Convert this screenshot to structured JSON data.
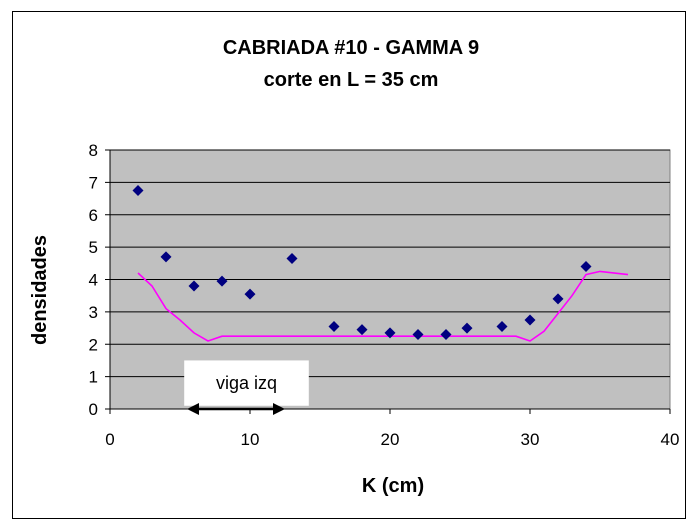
{
  "chart_data": {
    "type": "scatter",
    "title": "CABRIADA #10 - GAMMA 9",
    "subtitle": "corte en L = 35 cm",
    "xlabel": "K (cm)",
    "ylabel": "densidades",
    "xlim": [
      0,
      40
    ],
    "ylim": [
      0,
      8
    ],
    "xticks": [
      0,
      10,
      20,
      30,
      40
    ],
    "yticks": [
      0,
      1,
      2,
      3,
      4,
      5,
      6,
      7,
      8
    ],
    "grid": "horizontal",
    "plot_background": "#c0c0c0",
    "series": [
      {
        "type": "scatter",
        "marker": "diamond",
        "color": "#000080",
        "x": [
          2,
          4,
          6,
          8,
          10,
          13,
          16,
          18,
          20,
          22,
          24,
          25.5,
          28,
          30,
          32,
          34
        ],
        "y": [
          6.75,
          4.7,
          3.8,
          3.95,
          3.55,
          4.65,
          2.55,
          2.45,
          2.35,
          2.3,
          2.3,
          2.5,
          2.55,
          2.75,
          3.4,
          4.4
        ]
      },
      {
        "type": "line",
        "color": "#ff00ff",
        "x": [
          2,
          3,
          4,
          5,
          6,
          7,
          8,
          9,
          10,
          12,
          14,
          16,
          18,
          20,
          22,
          24,
          26,
          28,
          29,
          30,
          31,
          32,
          33,
          34,
          35,
          37
        ],
        "y": [
          4.2,
          3.8,
          3.1,
          2.75,
          2.35,
          2.1,
          2.25,
          2.25,
          2.25,
          2.25,
          2.25,
          2.25,
          2.25,
          2.25,
          2.25,
          2.25,
          2.25,
          2.25,
          2.25,
          2.1,
          2.4,
          2.95,
          3.5,
          4.15,
          4.25,
          4.15
        ]
      }
    ],
    "annotation": {
      "text": "viga izq",
      "arrow_from_x": 5.5,
      "arrow_to_x": 12.5,
      "arrow_y": 0
    }
  }
}
